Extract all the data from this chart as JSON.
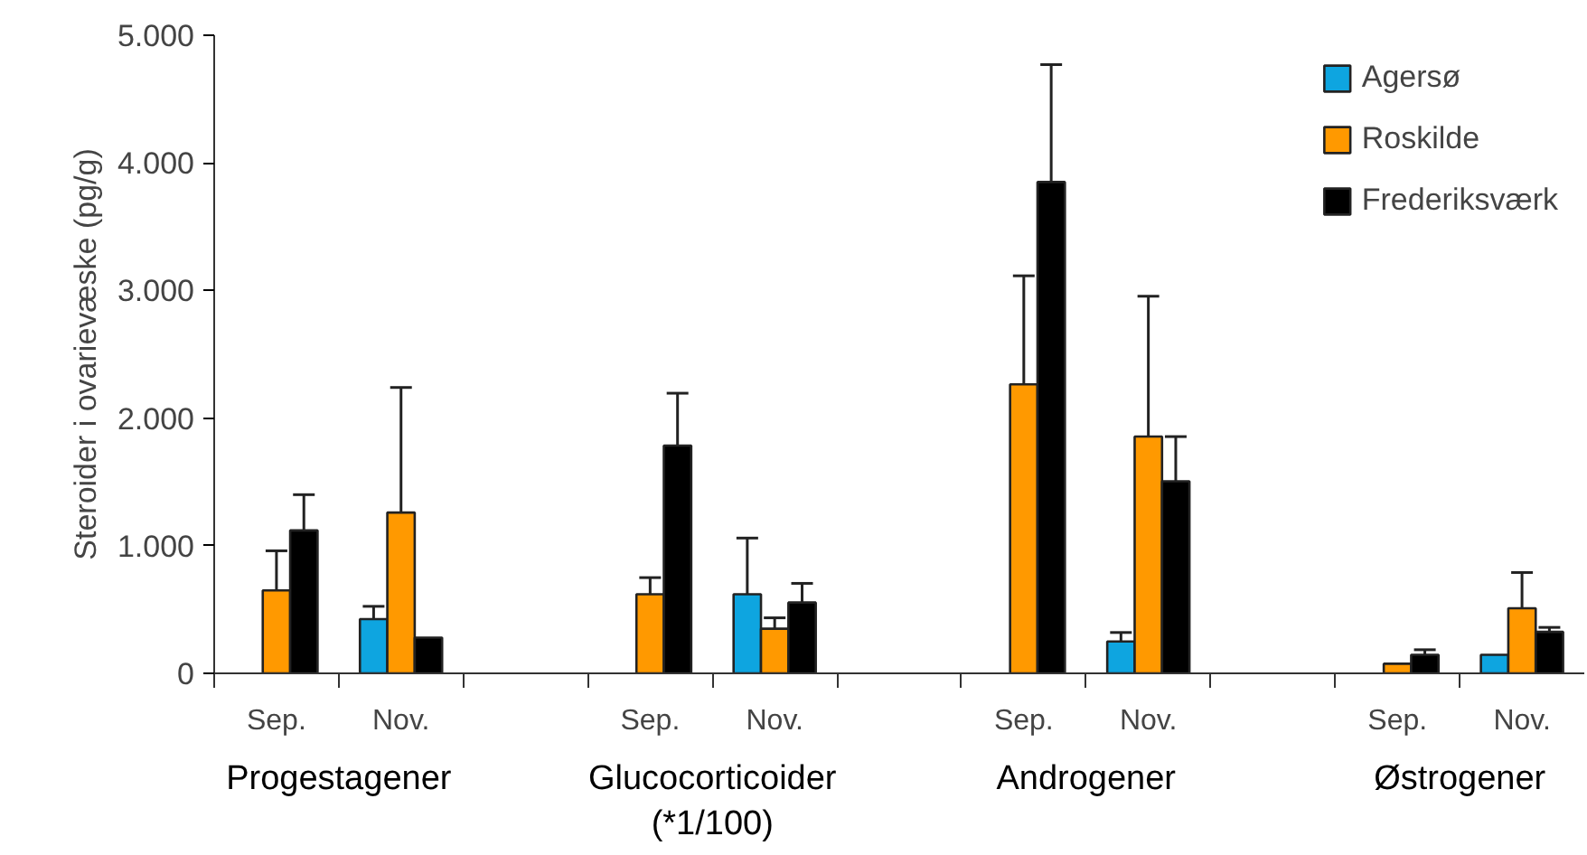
{
  "chart_data": {
    "type": "bar",
    "ylabel": "Steroider i ovarievæske (pg/g)",
    "categories": [
      "Sep.",
      "Nov.",
      null,
      "Sep.",
      "Nov.",
      null,
      "Sep.",
      "Nov.",
      null,
      "Sep.",
      "Nov."
    ],
    "series": [
      {
        "name": "Agersø",
        "color": "#0ea5e0",
        "values": [
          null,
          425,
          null,
          null,
          620,
          null,
          null,
          250,
          null,
          null,
          145
        ],
        "errors": [
          null,
          100,
          null,
          null,
          440,
          null,
          null,
          70,
          null,
          null,
          null
        ]
      },
      {
        "name": "Roskilde",
        "color": "#ff9900",
        "values": [
          650,
          1260,
          null,
          620,
          350,
          null,
          2265,
          1855,
          null,
          75,
          510
        ],
        "errors": [
          310,
          980,
          null,
          130,
          85,
          null,
          850,
          1100,
          null,
          null,
          280
        ]
      },
      {
        "name": "Frederiksværk",
        "color": "#000000",
        "values": [
          1120,
          280,
          null,
          1785,
          555,
          null,
          3850,
          1505,
          null,
          145,
          325
        ],
        "errors": [
          280,
          null,
          null,
          410,
          150,
          null,
          920,
          350,
          null,
          40,
          35
        ]
      }
    ],
    "annotations": [
      "Progestagener",
      "Glucocorticoider\n(*1/100)",
      "Androgener",
      "Østrogener"
    ],
    "ylim": [
      0,
      5000
    ],
    "yticks": [
      {
        "value": 0,
        "label": "0"
      },
      {
        "value": 1000,
        "label": "1.000"
      },
      {
        "value": 2000,
        "label": "2.000"
      },
      {
        "value": 3000,
        "label": "3.000"
      },
      {
        "value": 4000,
        "label": "4.000"
      },
      {
        "value": 5000,
        "label": "5.000"
      }
    ],
    "grid": false,
    "legend": "top right"
  }
}
